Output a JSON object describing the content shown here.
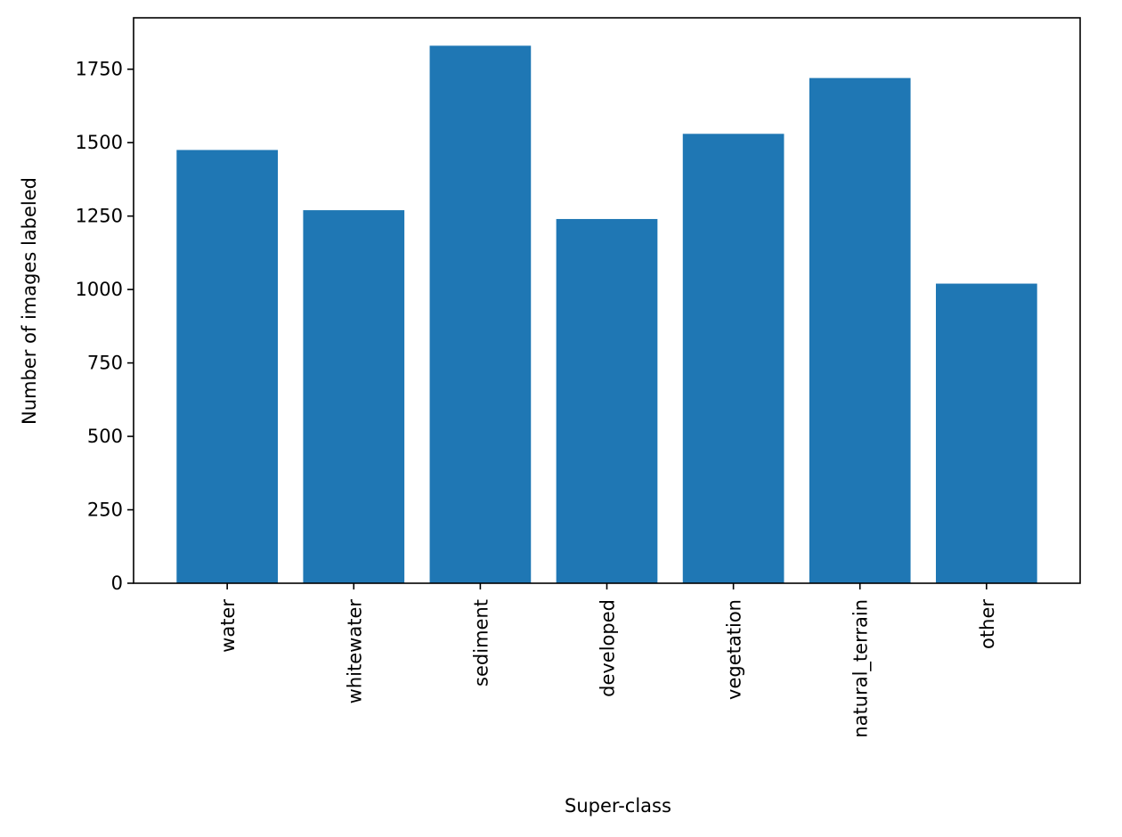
{
  "chart_data": {
    "type": "bar",
    "categories": [
      "water",
      "whitewater",
      "sediment",
      "developed",
      "vegetation",
      "natural_terrain",
      "other"
    ],
    "values": [
      1475,
      1270,
      1830,
      1240,
      1530,
      1720,
      1020
    ],
    "title": "",
    "xlabel": "Super-class",
    "ylabel": "Number of images labeled",
    "ylim": [
      0,
      1925
    ],
    "yticks": [
      0,
      250,
      500,
      750,
      1000,
      1250,
      1500,
      1750
    ],
    "grid": false,
    "bar_color": "#1f77b4"
  }
}
